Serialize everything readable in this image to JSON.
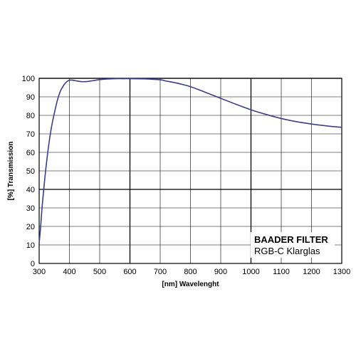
{
  "chart_data": {
    "type": "line",
    "title": "",
    "xlabel": "[nm] Wavelenght",
    "ylabel": "[%] Transmission",
    "xlim": [
      300,
      1300
    ],
    "ylim": [
      0,
      100
    ],
    "x_ticks": [
      300,
      400,
      500,
      600,
      700,
      800,
      900,
      1000,
      1100,
      1200,
      1300
    ],
    "y_ticks": [
      0,
      10,
      20,
      30,
      40,
      50,
      60,
      70,
      80,
      90,
      100
    ],
    "major_x_gridlines": [
      600,
      1000
    ],
    "major_y_gridlines": [
      40,
      100
    ],
    "grid": true,
    "series": [
      {
        "color": "#3d3d8f",
        "x": [
          300,
          305,
          310,
          320,
          330,
          340,
          350,
          360,
          370,
          380,
          390,
          400,
          410,
          420,
          440,
          460,
          480,
          500,
          520,
          550,
          580,
          600,
          650,
          700,
          720,
          750,
          800,
          850,
          900,
          950,
          1000,
          1050,
          1100,
          1150,
          1200,
          1250,
          1300
        ],
        "y": [
          11,
          20,
          31,
          48,
          62,
          73,
          81,
          88,
          93,
          96,
          98,
          99,
          99,
          98.7,
          98.2,
          98.3,
          98.8,
          99.3,
          99.6,
          99.8,
          99.8,
          99.8,
          99.7,
          99.2,
          98.5,
          97.6,
          95.5,
          92.4,
          89.2,
          86,
          83,
          80.5,
          78.3,
          76.6,
          75.3,
          74.3,
          73.5
        ]
      }
    ],
    "annotation": {
      "title": "BAADER FILTER",
      "subtitle": "RGB-C Klarglas",
      "position": "bottom-right"
    }
  }
}
